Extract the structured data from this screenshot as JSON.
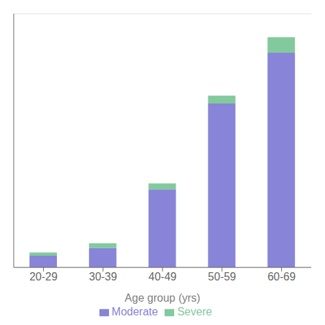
{
  "chart_data": {
    "type": "bar",
    "categories": [
      "20-29",
      "30-39",
      "40-49",
      "50-59",
      "60-69"
    ],
    "series": [
      {
        "name": "Moderate",
        "values": [
          3,
          5,
          20,
          42,
          55
        ]
      },
      {
        "name": "Severe",
        "values": [
          0.8,
          1.2,
          1.5,
          2.0,
          4.0
        ]
      }
    ],
    "stacked": true,
    "xlabel": "Age group (yrs)",
    "ylim": [
      0,
      65
    ],
    "yticks": [
      0,
      10,
      20,
      30,
      40,
      50,
      60
    ],
    "grid": true,
    "legend": "bottom",
    "tick_labels": "x"
  }
}
